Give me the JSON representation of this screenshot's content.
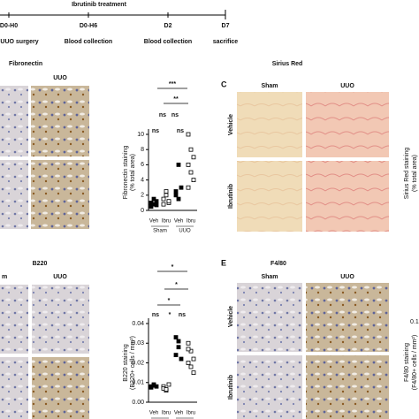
{
  "timeline": {
    "title": "Ibrutinib treatment",
    "points": [
      {
        "time": "D0-H0",
        "event": "UUO surgery"
      },
      {
        "time": "D0-H6",
        "event": "Blood collection"
      },
      {
        "time": "D2",
        "event": "Blood collection"
      },
      {
        "time": "D7",
        "event": "sacrifice"
      }
    ]
  },
  "panels": {
    "fibronectin": {
      "title": "Fibronectin",
      "group": "UUO"
    },
    "sirius": {
      "letter": "C",
      "title": "Sirius Red",
      "cols": [
        "Sham",
        "UUO"
      ],
      "rows": [
        "Vehicle",
        "Ibrutinib"
      ],
      "ylabel": [
        "Sirius Red staining",
        "(% total area)"
      ]
    },
    "b220": {
      "title": "B220",
      "sham_partial": "m",
      "group": "UUO"
    },
    "f480": {
      "letter": "E",
      "title": "F4/80",
      "cols": [
        "Sham",
        "UUO"
      ],
      "rows": [
        "Vehicle",
        "Ibrutinib"
      ],
      "ylabel": [
        "F4/80 staining",
        "(F4/80+ cells / mm²)"
      ],
      "tick": "0.1"
    }
  },
  "chart_data": [
    {
      "type": "scatter",
      "ylabel": [
        "Fibronectin staining",
        "(% total area)"
      ],
      "categories": [
        "Veh",
        "Ibru",
        "Veh",
        "Ibru"
      ],
      "groups": [
        "Sham",
        "UUO"
      ],
      "filled": [
        true,
        false,
        true,
        false
      ],
      "values": [
        [
          1,
          0.8,
          1.2,
          0.5,
          1.5,
          0.7
        ],
        [
          1.5,
          2,
          1,
          0.8,
          2.5,
          1.2
        ],
        [
          2,
          1.5,
          3,
          2.5,
          6
        ],
        [
          10,
          8,
          7,
          6,
          5,
          4,
          3
        ]
      ],
      "ylim": [
        0,
        10
      ],
      "yticks": [
        0,
        2,
        4,
        6,
        8,
        10
      ],
      "annotations": [
        "***",
        "**",
        "ns",
        "ns",
        "ns",
        "ns"
      ]
    },
    {
      "type": "scatter",
      "ylabel": [
        "B220 staining",
        "(B220+ cells / mm²)"
      ],
      "categories": [
        "Veh",
        "Ibru",
        "Veh",
        "Ibru"
      ],
      "groups": [
        "Sham",
        "UUO"
      ],
      "filled": [
        true,
        false,
        true,
        false
      ],
      "values": [
        [
          0.008,
          0.0085,
          0.008,
          0.0075,
          0.009
        ],
        [
          0.008,
          0.006,
          0.009,
          0.007,
          0.0065
        ],
        [
          0.033,
          0.028,
          0.022,
          0.024,
          0.031
        ],
        [
          0.03,
          0.026,
          0.022,
          0.02,
          0.018,
          0.015,
          0.027
        ]
      ],
      "ylim": [
        0,
        0.04
      ],
      "yticks": [
        {
          "value": 0,
          "label": "0.00"
        },
        {
          "value": 0.01,
          "label": "0.01"
        },
        {
          "value": 0.02,
          "label": "0.02"
        },
        {
          "value": 0.03,
          "label": "0.03"
        },
        {
          "value": 0.04,
          "label": "0.04"
        }
      ],
      "annotations": [
        "*",
        "*",
        "*",
        "ns",
        "*",
        "ns"
      ]
    }
  ]
}
